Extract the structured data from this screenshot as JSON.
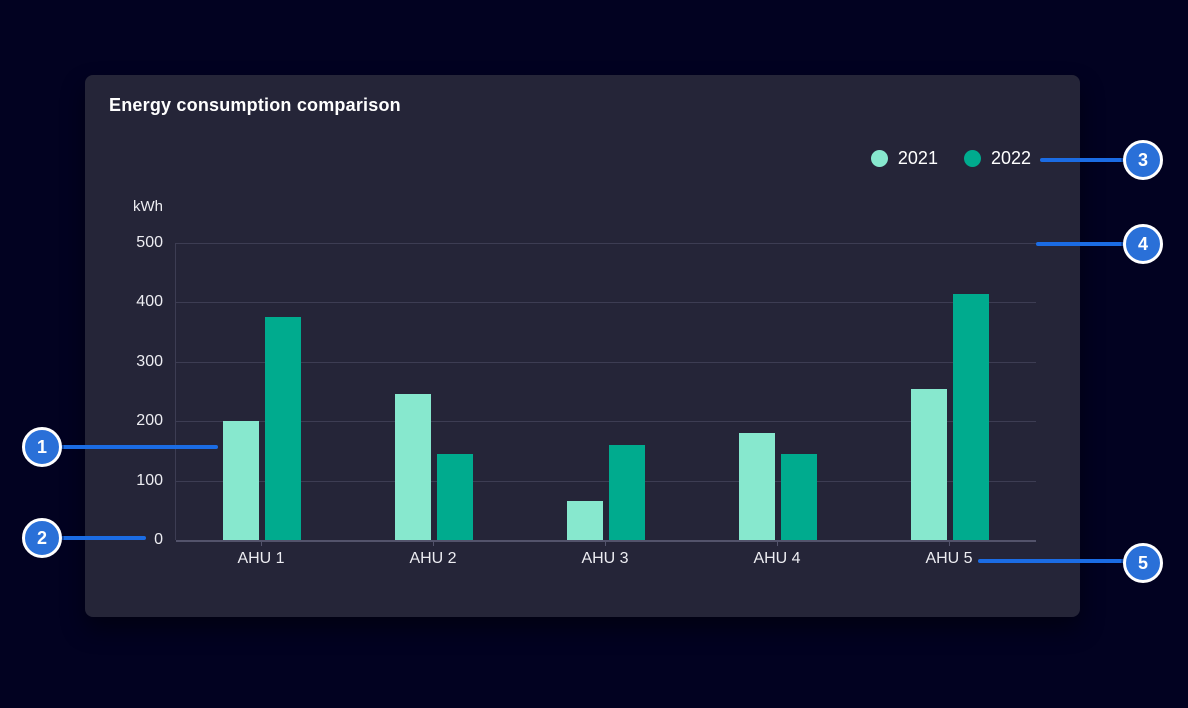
{
  "colors": {
    "page_bg": "#020221",
    "card_bg": "#252538",
    "grid": "#3D3D53",
    "axis": "#53536B",
    "text": "#FFFFFF",
    "series_2021": "#87E8CE",
    "series_2022": "#00AB8E",
    "callout_line": "#1B6CE4",
    "callout_bg": "#2A70D8",
    "callout_ring": "#FFFFFF"
  },
  "card": {
    "title": "Energy consumption comparison"
  },
  "chart_data": {
    "type": "bar",
    "title": "Energy consumption comparison",
    "xlabel": "",
    "ylabel": "kWh",
    "categories": [
      "AHU 1",
      "AHU 2",
      "AHU 3",
      "AHU 4",
      "AHU 5"
    ],
    "series": [
      {
        "name": "2021",
        "color": "#87E8CE",
        "values": [
          200,
          245,
          65,
          180,
          255
        ]
      },
      {
        "name": "2022",
        "color": "#00AB8E",
        "values": [
          375,
          145,
          160,
          145,
          415
        ]
      }
    ],
    "ylim": [
      0,
      500
    ],
    "yticks": [
      0,
      100,
      200,
      300,
      400,
      500
    ],
    "grid": true,
    "legend_position": "top-right"
  },
  "callouts": [
    {
      "number": "1"
    },
    {
      "number": "2"
    },
    {
      "number": "3"
    },
    {
      "number": "4"
    },
    {
      "number": "5"
    }
  ]
}
